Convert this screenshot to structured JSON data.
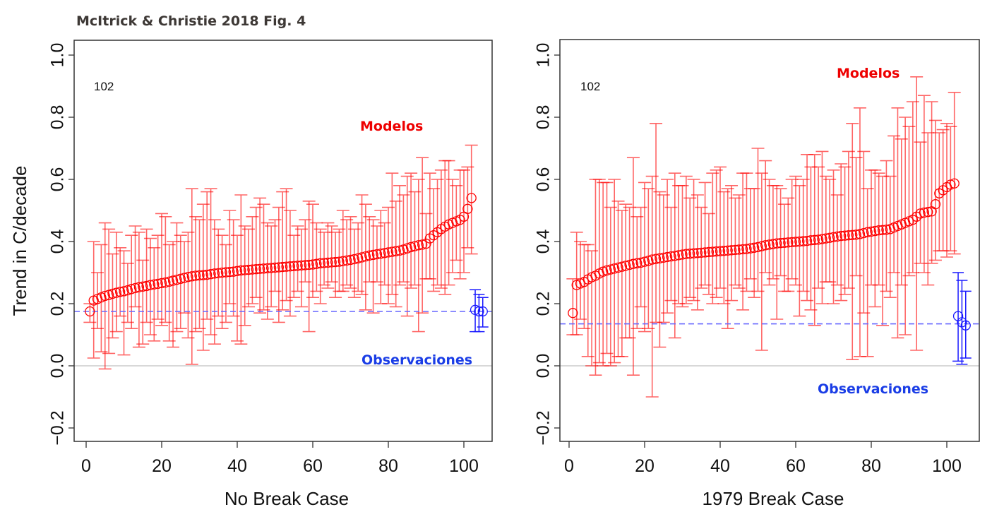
{
  "figure_title": "McItrick & Christie 2018 Fig. 4",
  "colors": {
    "models": "#ff0000",
    "observations": "#1a1aff",
    "obs_line": "#6666ff",
    "zero_line": "#cccccc",
    "legend_models": "#ee0000",
    "legend_obs": "#1a3de6"
  },
  "chart_data": [
    {
      "type": "scatter",
      "title": "",
      "xlabel": "No Break Case",
      "ylabel": "Trend in C/decade",
      "xlim": [
        -2,
        108
      ],
      "ylim": [
        -0.25,
        1.05
      ],
      "xticks": [
        0,
        20,
        40,
        60,
        80,
        100
      ],
      "xtick_labels": [
        "0",
        "20",
        "40",
        "60",
        "80",
        "100"
      ],
      "yticks": [
        -0.2,
        0.0,
        0.2,
        0.4,
        0.6,
        0.8,
        1.0
      ],
      "ytick_labels": [
        "−0.2",
        "0.0",
        "0.2",
        "0.4",
        "0.6",
        "0.8",
        "1.0"
      ],
      "grid": false,
      "count_annotation": "102",
      "legend": {
        "models": "Modelos",
        "observations": "Observaciones"
      },
      "zero_line": 0.0,
      "obs_mean_line": 0.175,
      "models": {
        "x_start": 1,
        "values": [
          0.175,
          0.21,
          0.215,
          0.22,
          0.225,
          0.228,
          0.232,
          0.235,
          0.238,
          0.24,
          0.243,
          0.247,
          0.25,
          0.253,
          0.255,
          0.257,
          0.26,
          0.262,
          0.264,
          0.266,
          0.268,
          0.271,
          0.274,
          0.277,
          0.28,
          0.283,
          0.286,
          0.288,
          0.29,
          0.291,
          0.292,
          0.293,
          0.295,
          0.297,
          0.298,
          0.3,
          0.301,
          0.302,
          0.303,
          0.305,
          0.307,
          0.308,
          0.309,
          0.31,
          0.311,
          0.312,
          0.313,
          0.314,
          0.315,
          0.316,
          0.317,
          0.318,
          0.319,
          0.32,
          0.321,
          0.322,
          0.323,
          0.324,
          0.325,
          0.326,
          0.328,
          0.33,
          0.331,
          0.332,
          0.333,
          0.334,
          0.335,
          0.337,
          0.339,
          0.341,
          0.343,
          0.346,
          0.349,
          0.352,
          0.355,
          0.357,
          0.359,
          0.361,
          0.363,
          0.365,
          0.367,
          0.369,
          0.371,
          0.374,
          0.378,
          0.382,
          0.385,
          0.388,
          0.39,
          0.393,
          0.41,
          0.42,
          0.43,
          0.44,
          0.448,
          0.455,
          0.46,
          0.465,
          0.47,
          0.48,
          0.505,
          0.54
        ],
        "upper": [
          0.2,
          0.4,
          0.3,
          0.39,
          0.46,
          0.44,
          0.36,
          0.43,
          0.38,
          0.37,
          0.33,
          0.42,
          0.45,
          0.43,
          0.34,
          0.44,
          0.41,
          0.38,
          0.42,
          0.49,
          0.48,
          0.39,
          0.4,
          0.46,
          0.42,
          0.4,
          0.43,
          0.57,
          0.48,
          0.47,
          0.52,
          0.56,
          0.57,
          0.47,
          0.44,
          0.42,
          0.39,
          0.5,
          0.47,
          0.42,
          0.55,
          0.45,
          0.44,
          0.48,
          0.51,
          0.54,
          0.52,
          0.46,
          0.45,
          0.47,
          0.51,
          0.56,
          0.57,
          0.5,
          0.42,
          0.45,
          0.44,
          0.47,
          0.53,
          0.52,
          0.46,
          0.44,
          0.43,
          0.46,
          0.45,
          0.43,
          0.44,
          0.5,
          0.47,
          0.48,
          0.44,
          0.46,
          0.55,
          0.52,
          0.48,
          0.47,
          0.45,
          0.5,
          0.46,
          0.51,
          0.62,
          0.53,
          0.58,
          0.55,
          0.61,
          0.62,
          0.56,
          0.6,
          0.67,
          0.49,
          0.62,
          0.57,
          0.6,
          0.63,
          0.66,
          0.66,
          0.6,
          0.58,
          0.63,
          0.63,
          0.64,
          0.71
        ],
        "lower": [
          0.14,
          0.025,
          0.12,
          0.045,
          -0.01,
          0.04,
          0.09,
          0.11,
          0.16,
          0.035,
          0.14,
          0.12,
          0.19,
          0.06,
          0.07,
          0.14,
          0.1,
          0.08,
          0.15,
          0.13,
          0.14,
          0.08,
          0.06,
          0.11,
          0.12,
          0.17,
          0.09,
          0.005,
          0.11,
          0.12,
          0.05,
          0.15,
          0.1,
          0.07,
          0.16,
          0.12,
          0.14,
          0.2,
          0.16,
          0.08,
          0.07,
          0.13,
          0.19,
          0.2,
          0.22,
          0.17,
          0.18,
          0.15,
          0.19,
          0.24,
          0.14,
          0.18,
          0.21,
          0.16,
          0.22,
          0.24,
          0.19,
          0.27,
          0.11,
          0.22,
          0.24,
          0.2,
          0.26,
          0.25,
          0.27,
          0.22,
          0.24,
          0.24,
          0.26,
          0.25,
          0.22,
          0.24,
          0.23,
          0.18,
          0.27,
          0.17,
          0.27,
          0.2,
          0.26,
          0.2,
          0.23,
          0.19,
          0.26,
          0.27,
          0.16,
          0.25,
          0.26,
          0.11,
          0.17,
          0.28,
          0.28,
          0.24,
          0.26,
          0.25,
          0.23,
          0.26,
          0.3,
          0.34,
          0.28,
          0.3,
          0.38,
          0.36
        ]
      },
      "observations": {
        "x": [
          103,
          104,
          105
        ],
        "values": [
          0.18,
          0.175,
          0.175
        ],
        "upper": [
          0.245,
          0.23,
          0.22
        ],
        "lower": [
          0.11,
          0.11,
          0.125
        ]
      }
    },
    {
      "type": "scatter",
      "title": "",
      "xlabel": "1979 Break Case",
      "ylabel": "",
      "xlim": [
        -2,
        108
      ],
      "ylim": [
        -0.25,
        1.05
      ],
      "xticks": [
        0,
        20,
        40,
        60,
        80,
        100
      ],
      "xtick_labels": [
        "0",
        "20",
        "40",
        "60",
        "80",
        "100"
      ],
      "yticks": [
        -0.2,
        0.0,
        0.2,
        0.4,
        0.6,
        0.8,
        1.0
      ],
      "ytick_labels": [
        "−0.2",
        "0.0",
        "0.2",
        "0.4",
        "0.6",
        "0.8",
        "1.0"
      ],
      "grid": false,
      "count_annotation": "102",
      "legend": {
        "models": "Modelos",
        "observations": "Observaciones"
      },
      "zero_line": 0.0,
      "obs_mean_line": 0.135,
      "models": {
        "x_start": 1,
        "values": [
          0.17,
          0.26,
          0.265,
          0.27,
          0.278,
          0.285,
          0.29,
          0.297,
          0.303,
          0.307,
          0.31,
          0.313,
          0.316,
          0.319,
          0.322,
          0.325,
          0.328,
          0.33,
          0.332,
          0.335,
          0.338,
          0.342,
          0.344,
          0.346,
          0.348,
          0.35,
          0.352,
          0.354,
          0.356,
          0.358,
          0.36,
          0.361,
          0.362,
          0.363,
          0.364,
          0.365,
          0.366,
          0.367,
          0.368,
          0.369,
          0.37,
          0.371,
          0.372,
          0.373,
          0.374,
          0.375,
          0.376,
          0.378,
          0.38,
          0.382,
          0.385,
          0.388,
          0.39,
          0.392,
          0.394,
          0.395,
          0.396,
          0.397,
          0.398,
          0.399,
          0.4,
          0.401,
          0.402,
          0.404,
          0.405,
          0.406,
          0.408,
          0.41,
          0.412,
          0.414,
          0.416,
          0.418,
          0.419,
          0.42,
          0.421,
          0.422,
          0.424,
          0.427,
          0.43,
          0.432,
          0.434,
          0.436,
          0.437,
          0.438,
          0.44,
          0.445,
          0.45,
          0.455,
          0.46,
          0.465,
          0.47,
          0.48,
          0.49,
          0.493,
          0.495,
          0.497,
          0.52,
          0.555,
          0.565,
          0.575,
          0.583,
          0.587
        ],
        "upper": [
          0.28,
          0.43,
          0.4,
          0.39,
          0.39,
          0.37,
          0.6,
          0.6,
          0.59,
          0.59,
          0.51,
          0.6,
          0.53,
          0.5,
          0.52,
          0.51,
          0.67,
          0.48,
          0.51,
          0.59,
          0.57,
          0.61,
          0.78,
          0.56,
          0.55,
          0.6,
          0.51,
          0.62,
          0.58,
          0.58,
          0.61,
          0.54,
          0.6,
          0.55,
          0.51,
          0.59,
          0.49,
          0.62,
          0.63,
          0.64,
          0.56,
          0.57,
          0.58,
          0.54,
          0.55,
          0.62,
          0.62,
          0.57,
          0.57,
          0.7,
          0.62,
          0.66,
          0.6,
          0.58,
          0.58,
          0.57,
          0.52,
          0.54,
          0.6,
          0.61,
          0.58,
          0.6,
          0.68,
          0.64,
          0.68,
          0.64,
          0.69,
          0.61,
          0.6,
          0.63,
          0.55,
          0.65,
          0.64,
          0.69,
          0.78,
          0.67,
          0.83,
          0.69,
          0.57,
          0.63,
          0.63,
          0.62,
          0.61,
          0.66,
          0.61,
          0.74,
          0.83,
          0.73,
          0.8,
          0.77,
          0.85,
          0.93,
          0.72,
          0.87,
          0.75,
          0.85,
          0.79,
          0.75,
          0.76,
          0.78,
          0.77,
          0.88
        ],
        "lower": [
          0.1,
          0.1,
          0.15,
          0.12,
          0.03,
          0.0,
          -0.03,
          0.01,
          0.0,
          0.04,
          0.0,
          0.01,
          0.03,
          0.03,
          0.09,
          0.09,
          -0.03,
          0.12,
          0.19,
          0.11,
          0.12,
          -0.1,
          0.14,
          0.06,
          0.14,
          0.17,
          0.21,
          0.09,
          0.2,
          0.19,
          0.2,
          0.22,
          0.21,
          0.18,
          0.25,
          0.26,
          0.23,
          0.2,
          0.22,
          0.25,
          0.2,
          0.12,
          0.21,
          0.26,
          0.25,
          0.18,
          0.24,
          0.28,
          0.22,
          0.24,
          0.05,
          0.3,
          0.26,
          0.28,
          0.15,
          0.29,
          0.24,
          0.24,
          0.28,
          0.26,
          0.16,
          0.24,
          0.21,
          0.18,
          0.13,
          0.25,
          0.2,
          0.27,
          0.27,
          0.2,
          0.26,
          0.21,
          0.23,
          0.25,
          0.02,
          0.29,
          0.03,
          0.17,
          0.03,
          0.26,
          0.19,
          0.26,
          0.13,
          0.24,
          0.22,
          0.3,
          0.09,
          0.26,
          0.1,
          0.29,
          0.3,
          0.05,
          0.33,
          0.3,
          0.26,
          0.33,
          0.34,
          0.37,
          0.37,
          0.35,
          0.37,
          0.36
        ]
      },
      "observations": {
        "x": [
          103,
          104,
          105
        ],
        "values": [
          0.16,
          0.14,
          0.13
        ],
        "upper": [
          0.3,
          0.275,
          0.24
        ],
        "lower": [
          0.015,
          0.005,
          0.025
        ]
      }
    }
  ]
}
